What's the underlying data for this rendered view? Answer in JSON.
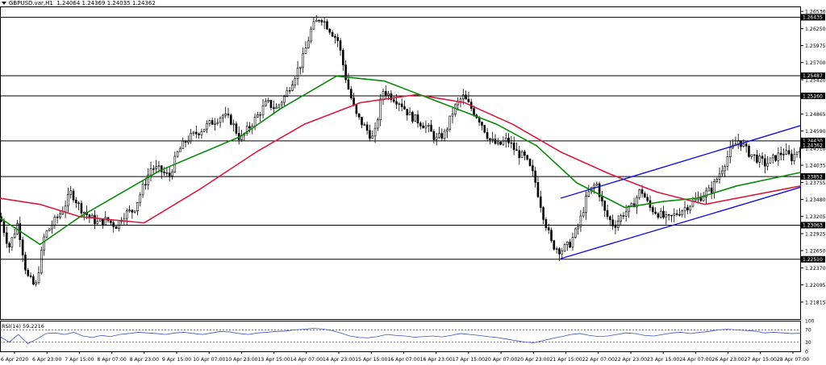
{
  "header": {
    "symbol": "GBPUSD.var,H1",
    "ohlc": "1.24064 1.24369 1.24035 1.24362"
  },
  "rsi_label": "RSI(14) 59.2216",
  "colors": {
    "up": "#000000",
    "down": "#000000",
    "ma_fast": "#0a8a0a",
    "ma_slow": "#d81b3c",
    "channel": "#1010e0",
    "levels": "#000000",
    "rsi": "#3a4fc8"
  },
  "chart_data": [
    {
      "type": "candlestick",
      "title": "",
      "ylim": [
        1.2154,
        1.2661
      ],
      "y_ticks": [
        "1.26530",
        "1.26250",
        "1.25975",
        "1.25700",
        "1.25420",
        "1.25145",
        "1.24865",
        "1.24590",
        "1.24310",
        "1.24035",
        "1.23755",
        "1.23480",
        "1.23205",
        "1.22925",
        "1.22650",
        "1.22370",
        "1.22095",
        "1.21815"
      ],
      "x_ticks": [
        "6 Apr 2020",
        "6 Apr 23:00",
        "7 Apr 15:00",
        "8 Apr 07:00",
        "8 Apr 23:00",
        "9 Apr 15:00",
        "10 Apr 07:00",
        "10 Apr 23:00",
        "13 Apr 15:00",
        "14 Apr 07:00",
        "14 Apr 23:00",
        "15 Apr 15:00",
        "16 Apr 07:00",
        "16 Apr 23:00",
        "17 Apr 15:00",
        "20 Apr 07:00",
        "20 Apr 23:00",
        "21 Apr 15:00",
        "22 Apr 07:00",
        "22 Apr 23:00",
        "23 Apr 15:00",
        "24 Apr 07:00",
        "26 Apr 23:00",
        "27 Apr 15:00",
        "28 Apr 07:00"
      ],
      "price_path": [
        1.232,
        1.227,
        1.231,
        1.2225,
        1.2205,
        1.229,
        1.231,
        1.233,
        1.236,
        1.2335,
        1.232,
        1.231,
        1.2315,
        1.2305,
        1.2325,
        1.233,
        1.2365,
        1.24,
        1.2395,
        1.2385,
        1.2425,
        1.2445,
        1.2455,
        1.2465,
        1.2475,
        1.2485,
        1.2475,
        1.2445,
        1.2465,
        1.2485,
        1.2505,
        1.2495,
        1.2515,
        1.2545,
        1.2575,
        1.2625,
        1.2645,
        1.2625,
        1.2605,
        1.2535,
        1.2485,
        1.2465,
        1.2445,
        1.2525,
        1.2515,
        1.2505,
        1.2485,
        1.2475,
        1.2465,
        1.2445,
        1.2455,
        1.2495,
        1.2515,
        1.2495,
        1.2475,
        1.2445,
        1.2435,
        1.2445,
        1.2425,
        1.2415,
        1.2385,
        1.2325,
        1.2275,
        1.2265,
        1.2275,
        1.2305,
        1.2355,
        1.2375,
        1.2325,
        1.2305,
        1.2325,
        1.2335,
        1.2365,
        1.2335,
        1.2325,
        1.2315,
        1.2325,
        1.2335,
        1.2345,
        1.2355,
        1.2365,
        1.2395,
        1.2425,
        1.2445,
        1.2425,
        1.2415,
        1.2405,
        1.2415,
        1.2425,
        1.2415,
        1.2436
      ],
      "levels": [
        1.26435,
        1.25487,
        1.2516,
        1.2443,
        1.23852,
        1.23063,
        1.2251
      ],
      "level_labels": [
        "1.26435",
        "1.25487",
        "1.25160",
        "1.24430",
        "1.23852",
        "1.23063",
        "1.22510"
      ],
      "current_price": 1.24362,
      "current_price_label": "1.24362",
      "ma_fast": [
        [
          0,
          1.2318
        ],
        [
          0.05,
          1.2275
        ],
        [
          0.1,
          1.232
        ],
        [
          0.2,
          1.2395
        ],
        [
          0.3,
          1.245
        ],
        [
          0.35,
          1.2495
        ],
        [
          0.42,
          1.2548
        ],
        [
          0.48,
          1.254
        ],
        [
          0.55,
          1.2505
        ],
        [
          0.62,
          1.247
        ],
        [
          0.67,
          1.2435
        ],
        [
          0.72,
          1.2375
        ],
        [
          0.78,
          1.2335
        ],
        [
          0.83,
          1.2345
        ],
        [
          0.87,
          1.235
        ],
        [
          0.92,
          1.237
        ],
        [
          1.0,
          1.2392
        ]
      ],
      "ma_slow": [
        [
          0,
          1.235
        ],
        [
          0.05,
          1.234
        ],
        [
          0.1,
          1.232
        ],
        [
          0.18,
          1.231
        ],
        [
          0.25,
          1.2365
        ],
        [
          0.32,
          1.2425
        ],
        [
          0.38,
          1.247
        ],
        [
          0.45,
          1.2505
        ],
        [
          0.52,
          1.2518
        ],
        [
          0.58,
          1.2505
        ],
        [
          0.64,
          1.247
        ],
        [
          0.7,
          1.2425
        ],
        [
          0.76,
          1.239
        ],
        [
          0.82,
          1.236
        ],
        [
          0.88,
          1.234
        ],
        [
          1.0,
          1.237
        ]
      ],
      "channel": [
        [
          [
            0.7,
            1.235
          ],
          [
            1.0,
            1.2468
          ]
        ],
        [
          [
            0.7,
            1.2252
          ],
          [
            1.0,
            1.2368
          ]
        ]
      ]
    },
    {
      "type": "line",
      "title": "",
      "ylim": [
        0,
        100
      ],
      "y_ticks": [
        "100",
        "70",
        "30",
        "0"
      ],
      "levels": [
        70,
        30
      ],
      "values": [
        48,
        30,
        55,
        25,
        40,
        58,
        60,
        55,
        62,
        50,
        45,
        52,
        48,
        55,
        58,
        62,
        60,
        58,
        55,
        60,
        62,
        58,
        55,
        60,
        65,
        63,
        58,
        55,
        60,
        62,
        65,
        66,
        70,
        72,
        75,
        73,
        68,
        60,
        50,
        45,
        44,
        48,
        55,
        52,
        50,
        46,
        48,
        50,
        47,
        52,
        58,
        55,
        52,
        48,
        45,
        40,
        35,
        30,
        28,
        35,
        42,
        48,
        55,
        58,
        52,
        48,
        50,
        55,
        60,
        58,
        52,
        50,
        55,
        60,
        62,
        58,
        62,
        65,
        70,
        72,
        70,
        68,
        66,
        60,
        62,
        60,
        58,
        59
      ]
    }
  ]
}
